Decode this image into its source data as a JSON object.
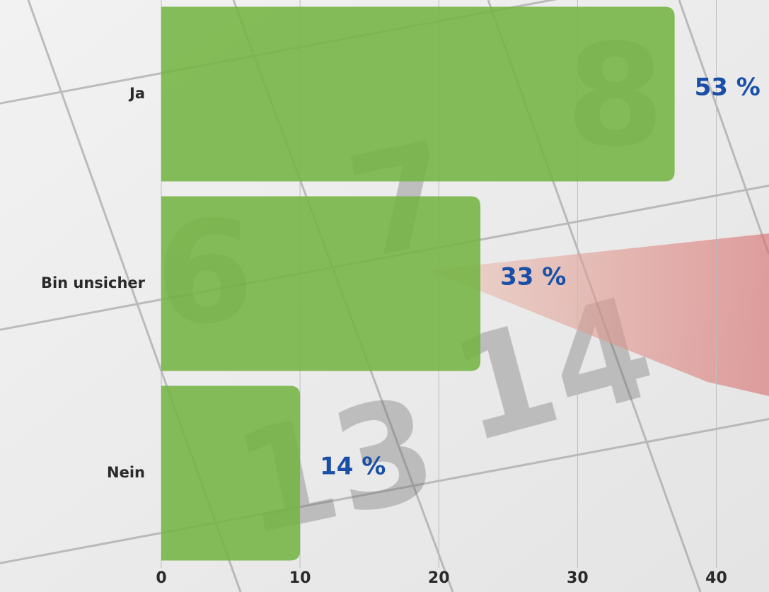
{
  "chart_data": {
    "type": "bar",
    "orientation": "horizontal",
    "categories": [
      "Ja",
      "Bin unsicher",
      "Nein"
    ],
    "values": [
      37,
      23,
      10
    ],
    "value_labels": [
      "53 %",
      "33 %",
      "14 %"
    ],
    "color": "#74b443",
    "xlim": [
      0,
      43.8
    ],
    "xticks": [
      0,
      10,
      20,
      30,
      40
    ],
    "grid": true
  }
}
